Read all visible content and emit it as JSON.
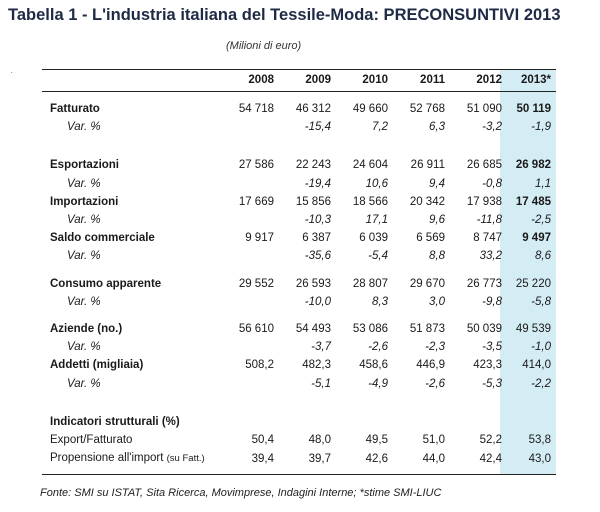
{
  "title": "Tabella 1 - L'industria italiana del Tessile-Moda: PRECONSUNTIVI 2013",
  "units": "(Milioni di euro)",
  "scan_mark": "·",
  "columns": [
    "",
    "2008",
    "2009",
    "2010",
    "2011",
    "2012",
    "2013*"
  ],
  "rows": [
    {
      "label": "Fatturato",
      "values": [
        "54 718",
        "46 312",
        "49 660",
        "52 768",
        "51 090",
        "50 119"
      ]
    },
    {
      "label": "Var. %",
      "values": [
        "",
        "-15,4",
        "7,2",
        "6,3",
        "-3,2",
        "-1,9"
      ]
    },
    {
      "label": "Esportazioni",
      "values": [
        "27 586",
        "22 243",
        "24 604",
        "26 911",
        "26 685",
        "26 982"
      ]
    },
    {
      "label": "Var. %",
      "values": [
        "",
        "-19,4",
        "10,6",
        "9,4",
        "-0,8",
        "1,1"
      ]
    },
    {
      "label": "Importazioni",
      "values": [
        "17 669",
        "15 856",
        "18 566",
        "20 342",
        "17 938",
        "17 485"
      ]
    },
    {
      "label": "Var. %",
      "values": [
        "",
        "-10,3",
        "17,1",
        "9,6",
        "-11,8",
        "-2,5"
      ]
    },
    {
      "label": "Saldo commerciale",
      "values": [
        "9 917",
        "6 387",
        "6 039",
        "6 569",
        "8 747",
        "9 497"
      ]
    },
    {
      "label": "Var. %",
      "values": [
        "",
        "-35,6",
        "-5,4",
        "8,8",
        "33,2",
        "8,6"
      ]
    },
    {
      "label": "Consumo apparente",
      "values": [
        "29 552",
        "26 593",
        "28 807",
        "29 670",
        "26 773",
        "25 220"
      ]
    },
    {
      "label": "Var. %",
      "values": [
        "",
        "-10,0",
        "8,3",
        "3,0",
        "-9,8",
        "-5,8"
      ]
    },
    {
      "label": "Aziende (no.)",
      "values": [
        "56 610",
        "54 493",
        "53 086",
        "51 873",
        "50 039",
        "49 539"
      ]
    },
    {
      "label": "Var. %",
      "values": [
        "",
        "-3,7",
        "-2,6",
        "-2,3",
        "-3,5",
        "-1,0"
      ]
    },
    {
      "label": "Addetti (migliaia)",
      "values": [
        "508,2",
        "482,3",
        "458,6",
        "446,9",
        "423,3",
        "414,0"
      ]
    },
    {
      "label": "Var. %",
      "values": [
        "",
        "-5,1",
        "-4,9",
        "-2,6",
        "-5,3",
        "-2,2"
      ]
    },
    {
      "label": "Indicatori strutturali (%)",
      "values": [
        "",
        "",
        "",
        "",
        "",
        ""
      ]
    },
    {
      "label": "Export/Fatturato",
      "values": [
        "50,4",
        "48,0",
        "49,5",
        "51,0",
        "52,2",
        "53,8"
      ]
    },
    {
      "label": "Propensione all'import",
      "label_suffix": "(su Fatt.)",
      "values": [
        "39,4",
        "39,7",
        "42,6",
        "44,0",
        "42,4",
        "43,0"
      ]
    }
  ],
  "footnote": "Fonte: SMI su ISTAT, Sita Ricerca, Movimprese, Indagini Interne; *stime SMI-LIUC",
  "colors": {
    "title": "#1f2a44",
    "highlight_column": "#d4ecf4",
    "text": "#1a1a1a"
  }
}
